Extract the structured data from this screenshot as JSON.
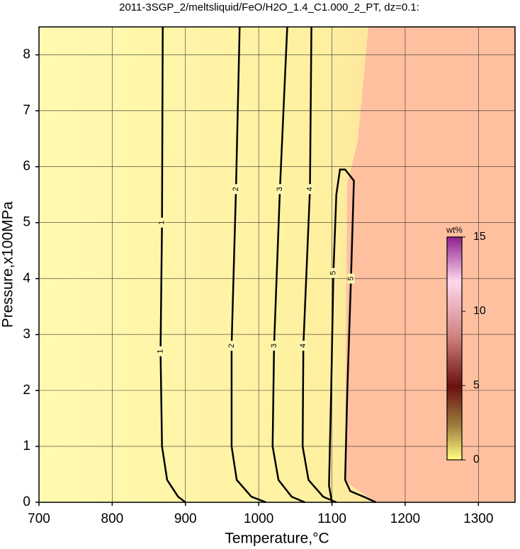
{
  "chart_data": {
    "type": "contour",
    "title": "2011-3SGP_2/meltsliquid/FeO/H2O_1.4_C1.000_2_PT, dz=0.1:",
    "x_label": "Temperature,°C",
    "y_label": "Pressure,x100MPa",
    "xlim": [
      700,
      1350
    ],
    "ylim": [
      0,
      8.5
    ],
    "xticks": [
      700,
      800,
      900,
      1000,
      1100,
      1200,
      1300
    ],
    "yticks": [
      0,
      1,
      2,
      3,
      4,
      5,
      6,
      7,
      8
    ],
    "grid": true,
    "contours": [
      {
        "level": 1,
        "x": [
          869,
          868,
          866,
          868,
          875,
          890,
          900
        ],
        "y": [
          8.5,
          5,
          2.7,
          1,
          0.4,
          0.1,
          0
        ]
      },
      {
        "level": 2,
        "x": [
          974,
          969,
          963,
          963,
          970,
          990,
          1010
        ],
        "y": [
          8.5,
          5.6,
          2.8,
          1,
          0.4,
          0.1,
          0
        ]
      },
      {
        "level": 3,
        "x": [
          1039,
          1029,
          1021,
          1019,
          1027,
          1045,
          1063
        ],
        "y": [
          8.5,
          5.6,
          2.8,
          1,
          0.4,
          0.1,
          0
        ]
      },
      {
        "level": 4,
        "x": [
          1072,
          1070,
          1061,
          1060,
          1068,
          1088,
          1106
        ],
        "y": [
          8.5,
          5.6,
          2.8,
          1,
          0.4,
          0.1,
          0
        ]
      },
      {
        "level": 5,
        "x": [
          1100,
          1096,
          1099,
          1102,
          1106,
          1111,
          1118,
          1130,
          1126,
          1121,
          1118,
          1125,
          1145,
          1160
        ],
        "y": [
          0,
          0.3,
          2,
          4.1,
          5.5,
          5.95,
          5.95,
          5.75,
          4,
          2,
          0.4,
          0.2,
          0.09,
          0
        ]
      }
    ],
    "colorbar": {
      "label": "wt%",
      "lim": [
        0,
        15
      ],
      "ticks": [
        0,
        5,
        10,
        15
      ]
    }
  }
}
